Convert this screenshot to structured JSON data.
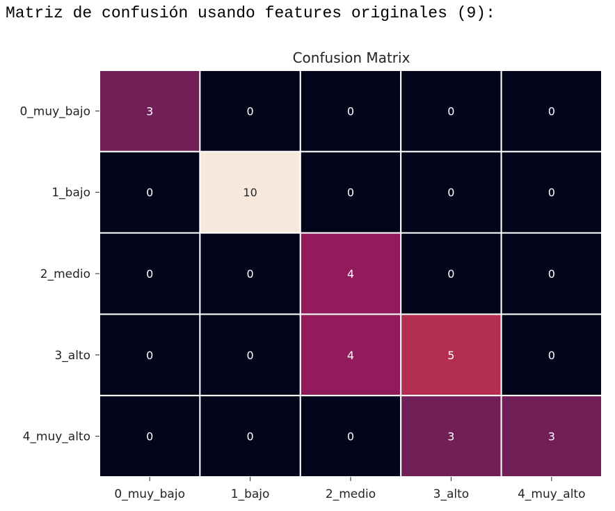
{
  "output": {
    "text": "Matriz de confusión usando features originales (9):"
  },
  "chart_data": {
    "type": "heatmap",
    "title": "Confusion Matrix",
    "xlabel": "",
    "ylabel": "",
    "x_categories": [
      "0_muy_bajo",
      "1_bajo",
      "2_medio",
      "3_alto",
      "4_muy_alto"
    ],
    "y_categories": [
      "0_muy_bajo",
      "1_bajo",
      "2_medio",
      "3_alto",
      "4_muy_alto"
    ],
    "values": [
      [
        3,
        0,
        0,
        0,
        0
      ],
      [
        0,
        10,
        0,
        0,
        0
      ],
      [
        0,
        0,
        4,
        0,
        0
      ],
      [
        0,
        0,
        4,
        5,
        0
      ],
      [
        0,
        0,
        0,
        3,
        3
      ]
    ],
    "vmin": 0,
    "vmax": 10,
    "colormap": "rocket",
    "colors": {
      "0": "#03051a",
      "3": "#701f57",
      "4": "#921c5b",
      "5": "#b42e52",
      "10": "#f6e8dc"
    },
    "text_color_dark_cell": "#ffffff",
    "text_color_light_cell": "#262626",
    "grid_color": "#ffffff",
    "colorbar": false
  }
}
